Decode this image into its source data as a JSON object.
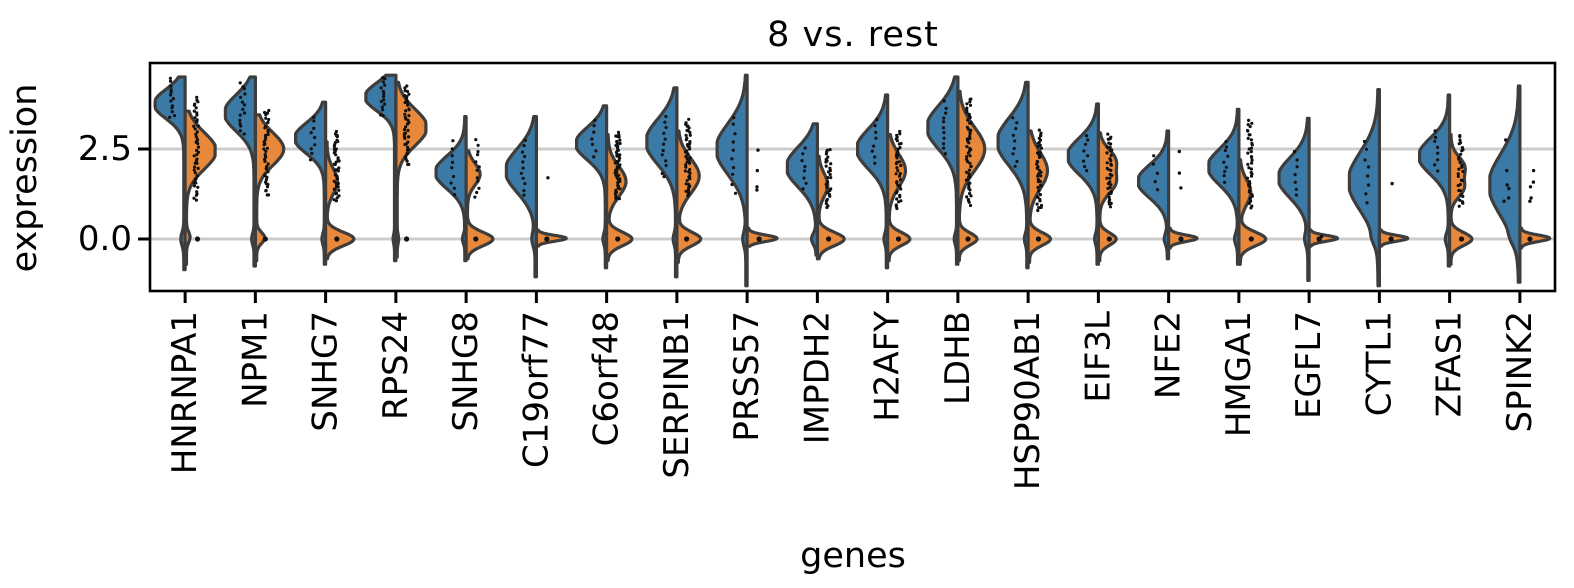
{
  "chart_data": {
    "type": "violin",
    "title": "8 vs. rest",
    "xlabel": "genes",
    "ylabel": "expression",
    "ylim": [
      -1.45,
      4.89
    ],
    "grid": true,
    "yticks": [
      {
        "value": 2.5,
        "label": "2.5"
      },
      {
        "value": 0.0,
        "label": "0.0"
      }
    ],
    "split_groups": [
      "8",
      "rest"
    ],
    "colors": {
      "group_8": "#3b7aa7",
      "rest": "#e8883b",
      "edge": "#3d3d3d",
      "grid": "#cccccc",
      "dots": "#111111",
      "frame": "#000000",
      "background": "#ffffff",
      "text": "#000000"
    },
    "genes": [
      {
        "gene": "HNRNPA1",
        "left": {
          "lo": -0.85,
          "hi": 4.5,
          "bumps": [
            [
              3.75,
              1.0,
              0.4
            ],
            [
              0.0,
              0.1,
              0.18
            ]
          ]
        },
        "right": {
          "lo": -0.7,
          "hi": 3.55,
          "bumps": [
            [
              2.45,
              1.0,
              0.5
            ],
            [
              0.05,
              0.12,
              0.15
            ]
          ]
        },
        "left_dots": {
          "lo": 3.35,
          "hi": 4.45,
          "n": 13
        },
        "right_dots": {
          "lo": 1.1,
          "hi": 3.95,
          "n": 48
        },
        "zero_dot": true
      },
      {
        "gene": "NPM1",
        "left": {
          "lo": -0.75,
          "hi": 4.5,
          "bumps": [
            [
              3.5,
              1.0,
              0.5
            ],
            [
              0.0,
              0.08,
              0.15
            ]
          ]
        },
        "right": {
          "lo": -0.6,
          "hi": 3.45,
          "bumps": [
            [
              2.5,
              0.9,
              0.45
            ],
            [
              0.03,
              0.27,
              0.15
            ]
          ]
        },
        "left_dots": {
          "lo": 2.9,
          "hi": 4.35,
          "n": 15
        },
        "right_dots": {
          "lo": 1.2,
          "hi": 3.6,
          "n": 44
        },
        "zero_dot": true
      },
      {
        "gene": "SNHG7",
        "left": {
          "lo": -0.7,
          "hi": 3.8,
          "bumps": [
            [
              2.8,
              1.0,
              0.42
            ],
            [
              0.0,
              0.08,
              0.15
            ]
          ]
        },
        "right": {
          "lo": -0.55,
          "hi": 2.7,
          "bumps": [
            [
              1.6,
              0.35,
              0.35
            ],
            [
              0.0,
              0.9,
              0.19
            ]
          ]
        },
        "left_dots": {
          "lo": 2.2,
          "hi": 3.4,
          "n": 9
        },
        "right_dots": {
          "lo": 1.05,
          "hi": 3.0,
          "n": 42
        },
        "zero_dot": true
      },
      {
        "gene": "RPS24",
        "left": {
          "lo": -0.6,
          "hi": 4.55,
          "bumps": [
            [
              3.95,
              1.0,
              0.38
            ],
            [
              0.0,
              0.05,
              0.12
            ]
          ]
        },
        "right": {
          "lo": -0.5,
          "hi": 4.35,
          "bumps": [
            [
              3.1,
              1.0,
              0.5
            ],
            [
              0.0,
              0.05,
              0.12
            ]
          ]
        },
        "left_dots": {
          "lo": 3.4,
          "hi": 4.5,
          "n": 15
        },
        "right_dots": {
          "lo": 2.05,
          "hi": 4.25,
          "n": 44
        },
        "zero_dot": true
      },
      {
        "gene": "SNHG8",
        "left": {
          "lo": -0.6,
          "hi": 3.4,
          "bumps": [
            [
              1.85,
              1.0,
              0.45
            ],
            [
              0.0,
              0.08,
              0.12
            ]
          ]
        },
        "right": {
          "lo": -0.55,
          "hi": 2.45,
          "bumps": [
            [
              1.8,
              0.42,
              0.3
            ],
            [
              0.0,
              0.85,
              0.19
            ]
          ]
        },
        "left_dots": {
          "lo": 1.2,
          "hi": 2.7,
          "n": 9
        },
        "right_dots": {
          "lo": 1.15,
          "hi": 2.75,
          "n": 12
        },
        "zero_dot": true
      },
      {
        "gene": "C19orf77",
        "left": {
          "lo": -1.05,
          "hi": 3.4,
          "bumps": [
            [
              1.9,
              1.0,
              0.6
            ],
            [
              0.0,
              0.1,
              0.2
            ]
          ]
        },
        "right": {
          "lo": -0.2,
          "hi": 0.25,
          "bumps": [
            [
              0.02,
              0.95,
              0.08
            ]
          ]
        },
        "left_dots": {
          "lo": 1.2,
          "hi": 2.75,
          "n": 11
        },
        "right_dots": {
          "vals": [
            1.7
          ]
        },
        "zero_dot": true
      },
      {
        "gene": "C6orf48",
        "left": {
          "lo": -0.8,
          "hi": 3.7,
          "bumps": [
            [
              2.65,
              1.0,
              0.45
            ],
            [
              0.0,
              0.08,
              0.15
            ]
          ]
        },
        "right": {
          "lo": -0.6,
          "hi": 2.9,
          "bumps": [
            [
              1.6,
              0.6,
              0.42
            ],
            [
              0.0,
              0.8,
              0.19
            ]
          ]
        },
        "left_dots": {
          "lo": 2.25,
          "hi": 3.3,
          "n": 7
        },
        "right_dots": {
          "lo": 1.1,
          "hi": 2.95,
          "n": 52
        },
        "zero_dot": true
      },
      {
        "gene": "SERPINB1",
        "left": {
          "lo": -1.05,
          "hi": 4.2,
          "bumps": [
            [
              2.7,
              1.0,
              0.62
            ],
            [
              0.0,
              0.08,
              0.15
            ]
          ]
        },
        "right": {
          "lo": -0.65,
          "hi": 3.0,
          "bumps": [
            [
              1.75,
              0.7,
              0.48
            ],
            [
              0.0,
              0.75,
              0.19
            ]
          ]
        },
        "left_dots": {
          "lo": 1.7,
          "hi": 3.4,
          "n": 12
        },
        "right_dots": {
          "lo": 1.2,
          "hi": 3.3,
          "n": 48
        },
        "zero_dot": true
      },
      {
        "gene": "PRSS57",
        "left": {
          "lo": -1.3,
          "hi": 4.55,
          "bumps": [
            [
              2.5,
              1.0,
              0.7
            ],
            [
              0.0,
              0.1,
              0.2
            ]
          ]
        },
        "right": {
          "lo": -0.2,
          "hi": 0.3,
          "bumps": [
            [
              0.02,
              0.95,
              0.09
            ]
          ]
        },
        "left_dots": {
          "lo": 1.3,
          "hi": 3.4,
          "n": 10
        },
        "right_dots": {
          "vals": [
            2.47,
            1.9,
            1.45,
            1.36
          ]
        },
        "zero_dot": true
      },
      {
        "gene": "IMPDH2",
        "left": {
          "lo": -0.45,
          "hi": 3.2,
          "bumps": [
            [
              2.0,
              1.0,
              0.55
            ],
            [
              0.0,
              0.15,
              0.15
            ]
          ]
        },
        "right": {
          "lo": -0.55,
          "hi": 2.3,
          "bumps": [
            [
              1.5,
              0.3,
              0.32
            ],
            [
              0.0,
              0.85,
              0.19
            ]
          ]
        },
        "left_dots": {
          "lo": 1.4,
          "hi": 2.5,
          "n": 8
        },
        "right_dots": {
          "lo": 0.9,
          "hi": 2.5,
          "n": 30
        },
        "zero_dot": true
      },
      {
        "gene": "H2AFY",
        "left": {
          "lo": -0.8,
          "hi": 4.0,
          "bumps": [
            [
              2.5,
              1.0,
              0.55
            ],
            [
              0.0,
              0.08,
              0.15
            ]
          ]
        },
        "right": {
          "lo": -0.6,
          "hi": 2.9,
          "bumps": [
            [
              1.9,
              0.55,
              0.45
            ],
            [
              0.0,
              0.7,
              0.18
            ]
          ]
        },
        "left_dots": {
          "lo": 2.1,
          "hi": 3.3,
          "n": 8
        },
        "right_dots": {
          "lo": 0.85,
          "hi": 3.0,
          "n": 40
        },
        "zero_dot": true
      },
      {
        "gene": "LDHB",
        "left": {
          "lo": -0.7,
          "hi": 4.5,
          "bumps": [
            [
              3.1,
              1.0,
              0.6
            ],
            [
              0.0,
              0.08,
              0.14
            ]
          ]
        },
        "right": {
          "lo": -0.6,
          "hi": 4.1,
          "bumps": [
            [
              2.5,
              0.85,
              0.6
            ],
            [
              0.0,
              0.6,
              0.17
            ]
          ]
        },
        "left_dots": {
          "lo": 2.4,
          "hi": 3.8,
          "n": 11
        },
        "right_dots": {
          "lo": 0.95,
          "hi": 3.9,
          "n": 55
        },
        "zero_dot": true
      },
      {
        "gene": "HSP90AB1",
        "left": {
          "lo": -0.8,
          "hi": 4.35,
          "bumps": [
            [
              2.7,
              1.0,
              0.65
            ],
            [
              0.0,
              0.08,
              0.15
            ]
          ]
        },
        "right": {
          "lo": -0.65,
          "hi": 3.0,
          "bumps": [
            [
              1.9,
              0.6,
              0.5
            ],
            [
              0.0,
              0.7,
              0.18
            ]
          ]
        },
        "left_dots": {
          "lo": 2.0,
          "hi": 3.4,
          "n": 9
        },
        "right_dots": {
          "lo": 0.8,
          "hi": 3.0,
          "n": 44
        },
        "zero_dot": true
      },
      {
        "gene": "EIF3L",
        "left": {
          "lo": -0.7,
          "hi": 3.75,
          "bumps": [
            [
              2.3,
              1.0,
              0.5
            ],
            [
              0.0,
              0.08,
              0.15
            ]
          ]
        },
        "right": {
          "lo": -0.6,
          "hi": 2.95,
          "bumps": [
            [
              2.2,
              0.5,
              0.3
            ],
            [
              1.55,
              0.5,
              0.3
            ],
            [
              0.0,
              0.55,
              0.17
            ]
          ]
        },
        "left_dots": {
          "lo": 1.9,
          "hi": 2.9,
          "n": 8
        },
        "right_dots": {
          "lo": 0.9,
          "hi": 2.9,
          "n": 38
        },
        "zero_dot": true
      },
      {
        "gene": "NFE2",
        "left": {
          "lo": -0.55,
          "hi": 3.0,
          "bumps": [
            [
              1.6,
              1.0,
              0.45
            ],
            [
              0.0,
              0.1,
              0.15
            ]
          ]
        },
        "right": {
          "lo": -0.25,
          "hi": 0.3,
          "bumps": [
            [
              0.02,
              0.9,
              0.09
            ]
          ]
        },
        "left_dots": {
          "lo": 1.4,
          "hi": 2.3,
          "n": 5
        },
        "right_dots": {
          "vals": [
            2.43,
            1.83,
            1.42
          ]
        },
        "zero_dot": true
      },
      {
        "gene": "HMGA1",
        "left": {
          "lo": -0.7,
          "hi": 3.6,
          "bumps": [
            [
              2.0,
              1.0,
              0.5
            ],
            [
              0.0,
              0.1,
              0.16
            ]
          ]
        },
        "right": {
          "lo": -0.7,
          "hi": 2.2,
          "bumps": [
            [
              1.3,
              0.35,
              0.35
            ],
            [
              0.0,
              0.85,
              0.19
            ]
          ]
        },
        "left_dots": {
          "lo": 1.6,
          "hi": 2.7,
          "n": 9
        },
        "right_dots": {
          "lo": 0.85,
          "hi": 3.3,
          "n": 40
        },
        "zero_dot": true
      },
      {
        "gene": "EGFL7",
        "left": {
          "lo": -1.15,
          "hi": 3.35,
          "bumps": [
            [
              1.7,
              1.0,
              0.55
            ],
            [
              0.0,
              0.1,
              0.18
            ]
          ]
        },
        "right": {
          "lo": -0.2,
          "hi": 0.25,
          "bumps": [
            [
              0.02,
              0.9,
              0.08
            ]
          ]
        },
        "left_dots": {
          "lo": 1.2,
          "hi": 2.4,
          "n": 7
        },
        "right_dots": {
          "vals": [
            0.07
          ]
        },
        "zero_dot": true
      },
      {
        "gene": "CYTL1",
        "left": {
          "lo": -1.3,
          "hi": 4.15,
          "bumps": [
            [
              1.6,
              1.0,
              0.8
            ],
            [
              0.0,
              0.08,
              0.18
            ]
          ]
        },
        "right": {
          "lo": -0.2,
          "hi": 0.25,
          "bumps": [
            [
              0.02,
              0.9,
              0.08
            ]
          ]
        },
        "left_dots": {
          "lo": 1.0,
          "hi": 2.7,
          "n": 8
        },
        "right_dots": {
          "vals": [
            1.54
          ]
        },
        "zero_dot": true
      },
      {
        "gene": "ZFAS1",
        "left": {
          "lo": -0.75,
          "hi": 4.0,
          "bumps": [
            [
              2.3,
              1.0,
              0.5
            ],
            [
              0.0,
              0.1,
              0.16
            ]
          ]
        },
        "right": {
          "lo": -0.7,
          "hi": 2.9,
          "bumps": [
            [
              2.0,
              0.45,
              0.28
            ],
            [
              1.4,
              0.4,
              0.25
            ],
            [
              0.0,
              0.7,
              0.18
            ]
          ]
        },
        "left_dots": {
          "lo": 1.9,
          "hi": 3.0,
          "n": 8
        },
        "right_dots": {
          "lo": 0.9,
          "hi": 2.9,
          "n": 30
        },
        "zero_dot": true
      },
      {
        "gene": "SPINK2",
        "left": {
          "lo": -1.2,
          "hi": 4.25,
          "bumps": [
            [
              1.5,
              1.0,
              0.85
            ],
            [
              0.0,
              0.08,
              0.18
            ]
          ]
        },
        "right": {
          "lo": -0.25,
          "hi": 0.3,
          "bumps": [
            [
              0.02,
              0.95,
              0.09
            ]
          ]
        },
        "left_dots": {
          "vals": [
            2.75,
            1.9,
            1.5,
            1.4,
            1.14,
            1.05
          ]
        },
        "right_dots": {
          "vals": [
            1.9,
            1.58,
            1.45,
            1.14,
            1.05
          ]
        },
        "zero_dot": true
      }
    ]
  }
}
